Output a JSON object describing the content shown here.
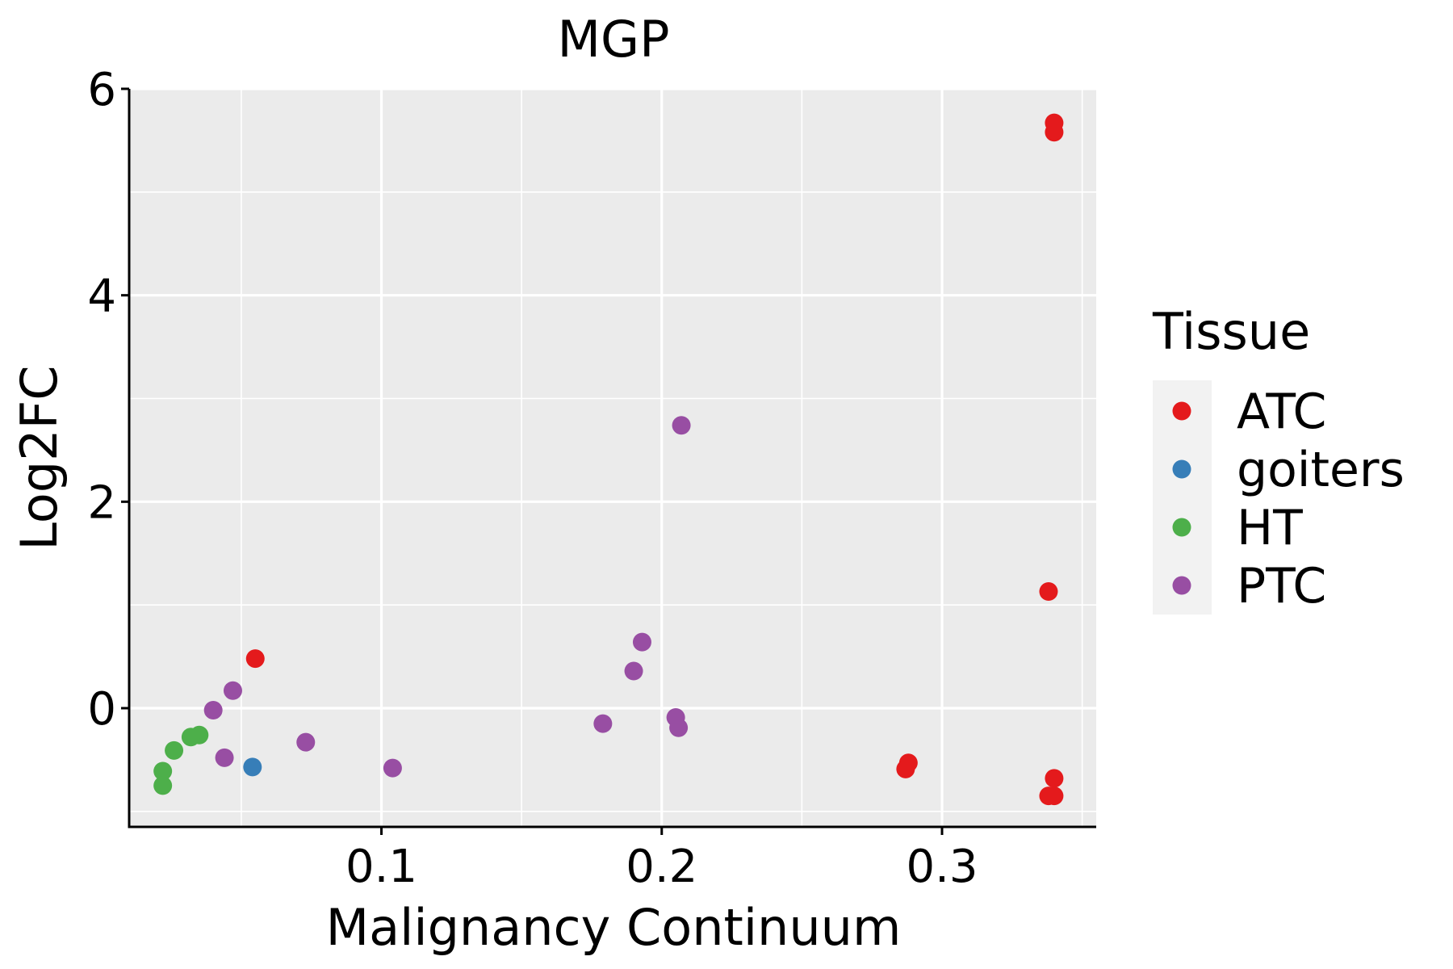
{
  "chart_data": {
    "type": "scatter",
    "title": "MGP",
    "xlabel": "Malignancy Continuum",
    "ylabel": "Log2FC",
    "xlim": [
      0.01,
      0.355
    ],
    "ylim": [
      -1.15,
      6.0
    ],
    "x_ticks": [
      0.1,
      0.2,
      0.3
    ],
    "x_tick_labels": [
      "0.1",
      "0.2",
      "0.3"
    ],
    "x_minor": [
      0.05,
      0.15,
      0.25,
      0.35
    ],
    "y_ticks": [
      0,
      2,
      4,
      6
    ],
    "y_tick_labels": [
      "0",
      "2",
      "4",
      "6"
    ],
    "y_minor": [
      -1,
      1,
      3,
      5
    ],
    "grid": true,
    "legend": {
      "title": "Tissue",
      "position": "right",
      "items": [
        {
          "label": "ATC",
          "color": "#e41a1c"
        },
        {
          "label": "goiters",
          "color": "#377eb8"
        },
        {
          "label": "HT",
          "color": "#4daf4a"
        },
        {
          "label": "PTC",
          "color": "#984ea3"
        }
      ]
    },
    "series": [
      {
        "name": "ATC",
        "color": "#e41a1c",
        "points": [
          [
            0.34,
            5.67
          ],
          [
            0.34,
            5.58
          ],
          [
            0.338,
            1.13
          ],
          [
            0.055,
            0.48
          ],
          [
            0.288,
            -0.53
          ],
          [
            0.287,
            -0.59
          ],
          [
            0.34,
            -0.68
          ],
          [
            0.338,
            -0.85
          ],
          [
            0.34,
            -0.85
          ]
        ]
      },
      {
        "name": "goiters",
        "color": "#377eb8",
        "points": [
          [
            0.054,
            -0.57
          ]
        ]
      },
      {
        "name": "HT",
        "color": "#4daf4a",
        "points": [
          [
            0.035,
            -0.26
          ],
          [
            0.032,
            -0.28
          ],
          [
            0.026,
            -0.41
          ],
          [
            0.022,
            -0.61
          ],
          [
            0.022,
            -0.75
          ]
        ]
      },
      {
        "name": "PTC",
        "color": "#984ea3",
        "points": [
          [
            0.207,
            2.74
          ],
          [
            0.193,
            0.64
          ],
          [
            0.19,
            0.36
          ],
          [
            0.047,
            0.17
          ],
          [
            0.04,
            -0.02
          ],
          [
            0.044,
            -0.48
          ],
          [
            0.073,
            -0.33
          ],
          [
            0.104,
            -0.58
          ],
          [
            0.179,
            -0.15
          ],
          [
            0.205,
            -0.09
          ],
          [
            0.206,
            -0.19
          ]
        ]
      }
    ]
  }
}
